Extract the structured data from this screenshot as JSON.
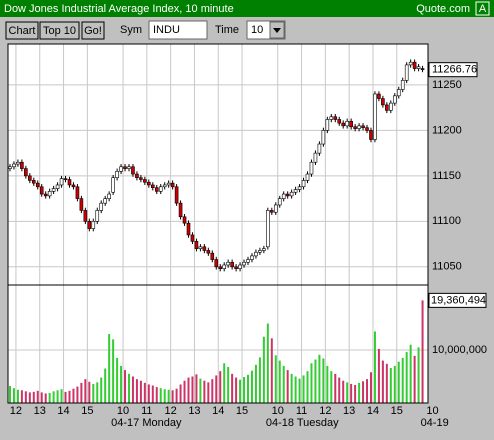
{
  "window": {
    "title": "Dow Jones Industrial Average Index, 10 minute",
    "brand": "Quote.com",
    "button": "A"
  },
  "toolbar": {
    "buttons": [
      "Chart",
      "Top 10",
      "Go!"
    ],
    "symbol_label": "Sym",
    "symbol": "INDU",
    "time_label": "Time",
    "time": "10"
  },
  "chart_data": [
    {
      "type": "candlestick",
      "categories": [
        null,
        null,
        "12",
        null,
        null,
        null,
        null,
        null,
        "13",
        null,
        null,
        null,
        null,
        null,
        "14",
        null,
        null,
        null,
        null,
        null,
        "15",
        null,
        null,
        null,
        null,
        null,
        null,
        null,
        null,
        "10",
        null,
        null,
        null,
        null,
        null,
        "11",
        null,
        null,
        null,
        null,
        null,
        "12",
        null,
        null,
        null,
        null,
        null,
        "13",
        null,
        null,
        null,
        null,
        null,
        "14",
        null,
        null,
        null,
        null,
        null,
        "15",
        null,
        null,
        null,
        null,
        null,
        null,
        null,
        null,
        "10",
        null,
        null,
        null,
        null,
        null,
        "11",
        null,
        null,
        null,
        null,
        null,
        "12",
        null,
        null,
        null,
        null,
        null,
        "13",
        null,
        null,
        null,
        null,
        null,
        "14",
        null,
        null,
        null,
        null,
        null,
        "15",
        null,
        null,
        null,
        null,
        null,
        null,
        null,
        null,
        "10"
      ],
      "x_groups": [
        null,
        null,
        null,
        null,
        null,
        null,
        null,
        null,
        null,
        null,
        null,
        null,
        null,
        null,
        null,
        null,
        null,
        null,
        null,
        null,
        null,
        null,
        null,
        null,
        null,
        null,
        "04-17 Monday",
        null,
        null,
        null,
        null,
        null,
        null,
        null,
        null,
        null,
        null,
        null,
        null,
        null,
        null,
        null,
        null,
        null,
        null,
        null,
        null,
        null,
        null,
        null,
        null,
        null,
        null,
        null,
        null,
        null,
        null,
        null,
        null,
        null,
        null,
        null,
        null,
        null,
        null,
        "04-18 Tuesday",
        null,
        null,
        null,
        null,
        null,
        null,
        null,
        null,
        null,
        null,
        null,
        null,
        null,
        null,
        null,
        null,
        null,
        null,
        null,
        null,
        null,
        null,
        null,
        null,
        null,
        null,
        null,
        null,
        null,
        null,
        null,
        null,
        null,
        null,
        null,
        null,
        null,
        null,
        "04-19",
        null,
        null,
        null
      ],
      "open": [
        11158,
        11160,
        11163,
        11165,
        11158,
        11150,
        11145,
        11142,
        11138,
        11130,
        11128,
        11133,
        11136,
        11140,
        11147,
        11146,
        11140,
        11138,
        11125,
        11112,
        11100,
        11092,
        11100,
        11112,
        11120,
        11125,
        11132,
        11148,
        11155,
        11160,
        11158,
        11160,
        11152,
        11148,
        11146,
        11143,
        11140,
        11137,
        11133,
        11138,
        11140,
        11142,
        11138,
        11120,
        11105,
        11098,
        11085,
        11078,
        11070,
        11072,
        11068,
        11065,
        11058,
        11050,
        11048,
        11052,
        11055,
        11050,
        11048,
        11052,
        11055,
        11058,
        11062,
        11066,
        11068,
        11072,
        11112,
        11110,
        11118,
        11125,
        11130,
        11128,
        11132,
        11135,
        11138,
        11145,
        11152,
        11165,
        11175,
        11185,
        11200,
        11212,
        11215,
        11212,
        11208,
        11205,
        11210,
        11204,
        11202,
        11205,
        11203,
        11200,
        11190,
        11240,
        11235,
        11228,
        11222,
        11230,
        11238,
        11245,
        11255,
        11272,
        11275,
        11268,
        11268,
        null,
        null,
        null
      ],
      "high": [
        11163,
        11166,
        11168,
        11168,
        11161,
        11153,
        11148,
        11145,
        11141,
        11133,
        11136,
        11139,
        11143,
        11150,
        11150,
        11149,
        11143,
        11141,
        11128,
        11115,
        11103,
        11103,
        11115,
        11123,
        11128,
        11133,
        11151,
        11158,
        11163,
        11163,
        11163,
        11163,
        11155,
        11151,
        11149,
        11146,
        11143,
        11140,
        11141,
        11143,
        11145,
        11145,
        11141,
        11123,
        11108,
        11101,
        11088,
        11081,
        11075,
        11075,
        11071,
        11068,
        11061,
        11053,
        11055,
        11058,
        11058,
        11053,
        11055,
        11058,
        11061,
        11065,
        11069,
        11071,
        11073,
        11115,
        11115,
        11121,
        11128,
        11133,
        11133,
        11135,
        11138,
        11141,
        11148,
        11155,
        11168,
        11178,
        11188,
        11203,
        11215,
        11218,
        11218,
        11215,
        11211,
        11213,
        11213,
        11207,
        11208,
        11208,
        11206,
        11203,
        11243,
        11243,
        11238,
        11231,
        11233,
        11241,
        11248,
        11258,
        11275,
        11278,
        11278,
        11273,
        11271,
        null,
        null,
        null
      ],
      "low": [
        11155,
        11157,
        11160,
        11155,
        11147,
        11142,
        11139,
        11135,
        11127,
        11125,
        11125,
        11130,
        11133,
        11137,
        11143,
        11137,
        11135,
        11122,
        11109,
        11097,
        11089,
        11089,
        11097,
        11109,
        11117,
        11122,
        11129,
        11145,
        11152,
        11155,
        11155,
        11149,
        11145,
        11143,
        11140,
        11137,
        11134,
        11130,
        11130,
        11135,
        11137,
        11135,
        11117,
        11102,
        11095,
        11082,
        11075,
        11067,
        11067,
        11065,
        11062,
        11055,
        11047,
        11045,
        11045,
        11049,
        11047,
        11045,
        11045,
        11049,
        11052,
        11055,
        11059,
        11063,
        11065,
        11069,
        11107,
        11107,
        11115,
        11122,
        11125,
        11125,
        11129,
        11132,
        11135,
        11142,
        11149,
        11162,
        11172,
        11182,
        11197,
        11209,
        11209,
        11205,
        11202,
        11202,
        11201,
        11199,
        11199,
        11200,
        11197,
        11187,
        11187,
        11232,
        11225,
        11219,
        11219,
        11227,
        11235,
        11242,
        11252,
        11269,
        11265,
        11265,
        11264,
        null,
        null,
        null
      ],
      "close": [
        11160,
        11163,
        11165,
        11158,
        11150,
        11145,
        11142,
        11138,
        11130,
        11128,
        11133,
        11136,
        11140,
        11147,
        11146,
        11140,
        11138,
        11125,
        11112,
        11100,
        11092,
        11100,
        11112,
        11120,
        11125,
        11130,
        11148,
        11155,
        11160,
        11158,
        11160,
        11152,
        11148,
        11146,
        11143,
        11140,
        11137,
        11133,
        11138,
        11140,
        11142,
        11138,
        11120,
        11105,
        11098,
        11085,
        11078,
        11070,
        11072,
        11068,
        11065,
        11058,
        11050,
        11048,
        11052,
        11055,
        11050,
        11048,
        11052,
        11055,
        11058,
        11062,
        11066,
        11068,
        11070,
        11112,
        11110,
        11118,
        11125,
        11130,
        11128,
        11132,
        11135,
        11138,
        11145,
        11152,
        11165,
        11175,
        11185,
        11200,
        11212,
        11215,
        11212,
        11208,
        11205,
        11210,
        11204,
        11202,
        11205,
        11203,
        11200,
        11190,
        11240,
        11235,
        11228,
        11222,
        11230,
        11238,
        11245,
        11255,
        11272,
        11275,
        11268,
        11270,
        11266.76,
        null,
        null,
        null
      ],
      "up_color": "#ffffff",
      "down_color": "#cc0000",
      "ylim": [
        11030,
        11295
      ],
      "yticks": [
        11050,
        11100,
        11150,
        11200,
        11250
      ],
      "grid": true
    },
    {
      "type": "bar",
      "values": [
        3200000,
        2800000,
        2500000,
        2400000,
        2200000,
        2000000,
        2100000,
        2300000,
        2000000,
        1800000,
        1900000,
        2200000,
        2400000,
        2600000,
        2100000,
        2300000,
        2700000,
        3100000,
        3800000,
        4500000,
        4000000,
        3600000,
        3900000,
        4800000,
        6500000,
        13000000,
        12000000,
        8500000,
        7000000,
        6200000,
        5500000,
        5000000,
        4500000,
        4200000,
        3800000,
        3500000,
        3300000,
        3000000,
        2800000,
        2600000,
        2500000,
        2400000,
        2700000,
        3500000,
        4200000,
        4800000,
        5000000,
        5400000,
        4600000,
        4200000,
        3900000,
        4500000,
        5200000,
        6000000,
        7500000,
        6800000,
        5500000,
        4800000,
        4400000,
        4900000,
        5300000,
        6100000,
        7200000,
        8600000,
        12500000,
        15000000,
        12200000,
        9000000,
        8000000,
        7000000,
        6200000,
        5500000,
        5000000,
        4600000,
        5200000,
        6000000,
        7500000,
        8200000,
        9100000,
        8400000,
        7000000,
        6000000,
        5500000,
        4800000,
        4200000,
        3900000,
        3600000,
        3400000,
        3800000,
        4100000,
        4500000,
        5800000,
        13500000,
        10200000,
        8000000,
        7400000,
        6600000,
        7000000,
        7800000,
        8500000,
        9600000,
        11000000,
        8900000,
        10500000,
        19360494,
        null,
        null,
        null
      ],
      "value_labels": [
        null,
        null,
        null,
        null,
        null,
        null,
        null,
        null,
        null,
        null,
        null,
        null,
        null,
        null,
        null,
        null,
        null,
        null,
        null,
        null,
        null,
        null,
        null,
        null,
        null,
        null,
        null,
        null,
        null,
        null,
        null,
        null,
        null,
        null,
        null,
        null,
        null,
        null,
        null,
        null,
        null,
        null,
        null,
        null,
        null,
        null,
        null,
        null,
        null,
        null,
        null,
        null,
        null,
        null,
        null,
        null,
        null,
        null,
        null,
        null,
        null,
        null,
        null,
        null,
        null,
        null,
        null,
        null,
        null,
        null,
        null,
        null,
        null,
        null,
        null,
        null,
        null,
        null,
        null,
        null,
        null,
        null,
        null,
        null,
        null,
        null,
        null,
        null,
        null,
        null,
        null,
        null,
        null,
        null,
        null,
        null,
        null,
        null,
        null,
        null,
        null,
        null,
        null,
        null,
        "19,360,494",
        null,
        null,
        null
      ],
      "up_color": "#33cc33",
      "down_color": "#cc3366",
      "ylim": [
        0,
        22260000
      ],
      "yticks": [
        {
          "value": 10000000,
          "label": "10,000,000"
        }
      ],
      "grid": true
    }
  ]
}
